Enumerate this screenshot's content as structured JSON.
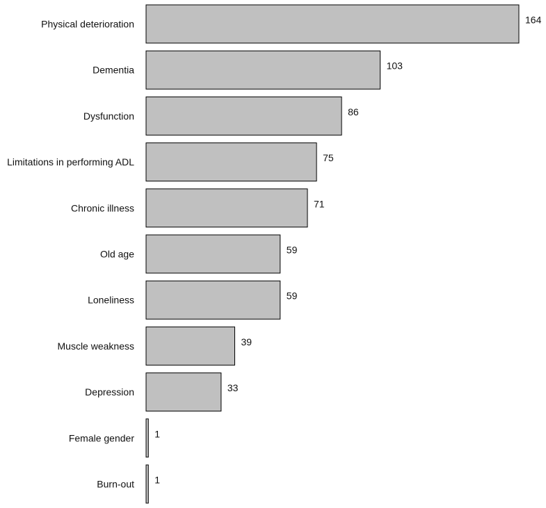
{
  "chart_data": {
    "type": "bar",
    "orientation": "horizontal",
    "categories": [
      "Physical deterioration",
      "Dementia",
      "Dysfunction",
      "Limitations in performing ADL",
      "Chronic illness",
      "Old age",
      "Loneliness",
      "Muscle weakness",
      "Depression",
      "Female gender",
      "Burn-out"
    ],
    "values": [
      164,
      103,
      86,
      75,
      71,
      59,
      59,
      39,
      33,
      1,
      1
    ],
    "data_labels": [
      "164",
      "103",
      "86",
      "75",
      "71",
      "59",
      "59",
      "39",
      "33",
      "1",
      "1"
    ],
    "xlim": [
      0,
      164
    ],
    "grid": false,
    "legend": "none",
    "bar_color": "#c0c0c0",
    "bar_edge_color": "#000000"
  }
}
